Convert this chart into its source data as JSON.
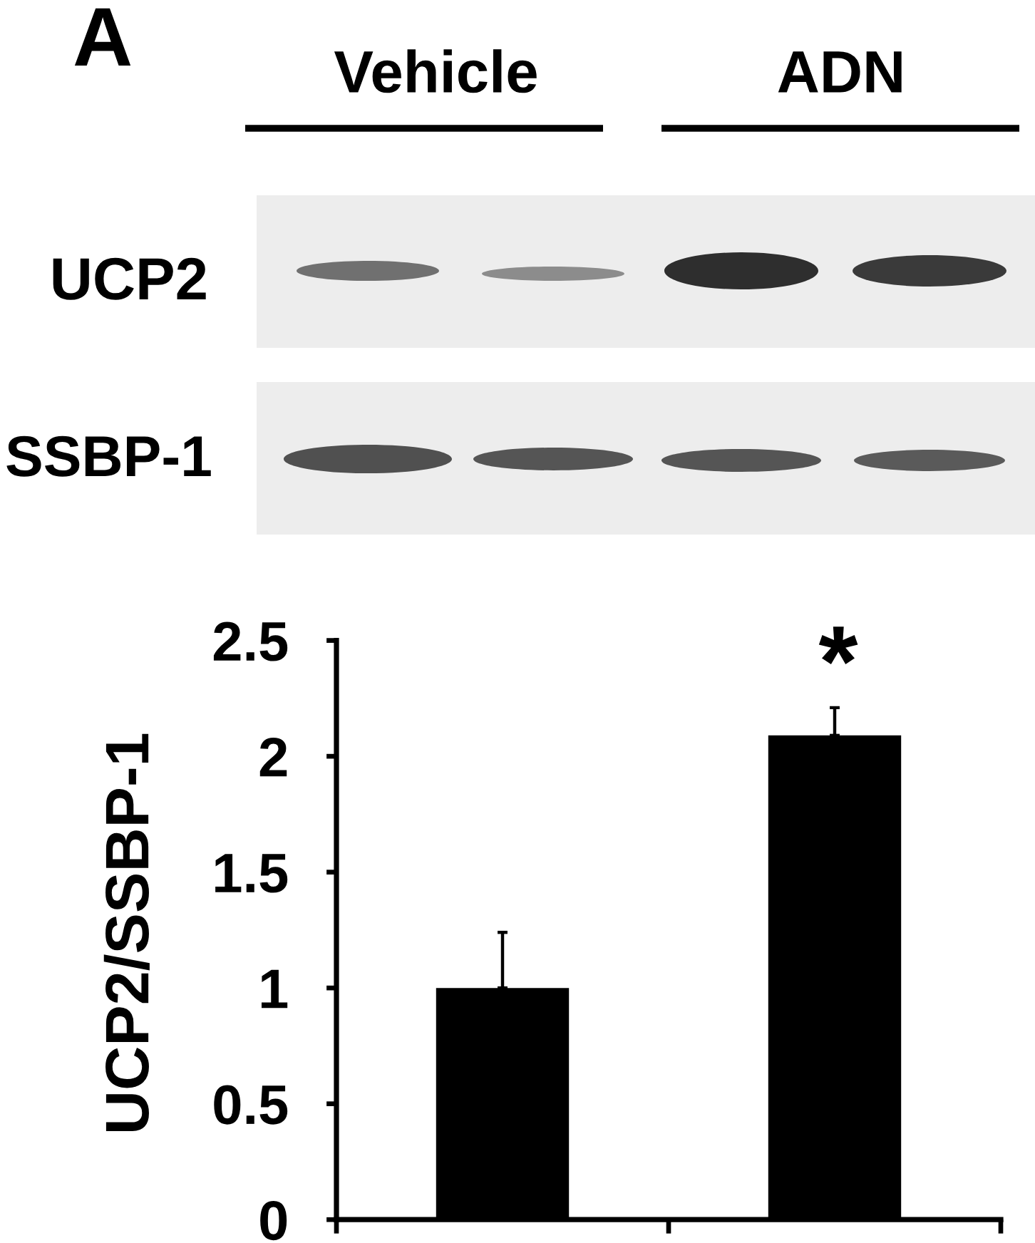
{
  "chart_data": {
    "type": "bar",
    "categories": [
      null,
      null
    ],
    "values": [
      1.0,
      2.09
    ],
    "color": "#000000",
    "errors": [
      [
        1.0,
        1.24
      ],
      [
        2.09,
        2.21
      ]
    ],
    "ylabel": "UCP2/SSBP-1",
    "ylim": [
      0,
      2.5
    ],
    "yticks": [
      0,
      0.5,
      1,
      1.5,
      2,
      2.5
    ],
    "annotations": [
      "A",
      "Vehicle",
      "ADN",
      "UCP2",
      "SSBP-1",
      "*"
    ]
  }
}
